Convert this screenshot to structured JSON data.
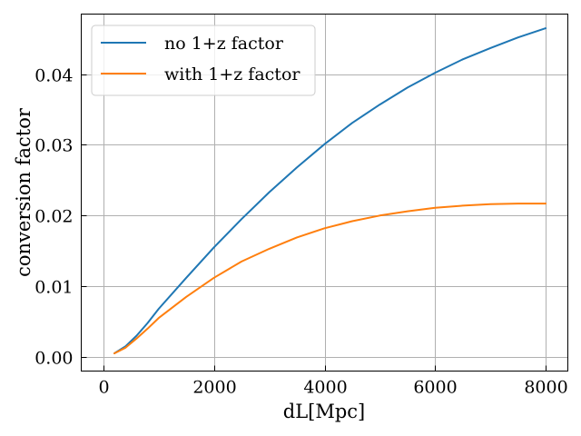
{
  "chart_data": {
    "type": "line",
    "title": "",
    "xlabel": "dL[Mpc]",
    "ylabel": "conversion factor",
    "xlim": [
      -400,
      8400
    ],
    "ylim": [
      -0.002,
      0.0485
    ],
    "xticks": [
      0,
      2000,
      4000,
      6000,
      8000
    ],
    "xtick_labels": [
      "0",
      "2000",
      "4000",
      "6000",
      "8000"
    ],
    "yticks": [
      0.0,
      0.01,
      0.02,
      0.03,
      0.04
    ],
    "ytick_labels": [
      "0.00",
      "0.01",
      "0.02",
      "0.03",
      "0.04"
    ],
    "grid": true,
    "legend_position": "top-left",
    "x": [
      200,
      400,
      600,
      800,
      1000,
      1500,
      2000,
      2500,
      3000,
      3500,
      4000,
      4500,
      5000,
      5500,
      6000,
      6500,
      7000,
      7500,
      8000
    ],
    "series": [
      {
        "name": "no 1+z factor",
        "color": "#1f77b4",
        "values": [
          0.0005,
          0.0015,
          0.003,
          0.0048,
          0.0068,
          0.0112,
          0.0155,
          0.0195,
          0.0233,
          0.0268,
          0.0301,
          0.0331,
          0.0357,
          0.0381,
          0.0402,
          0.0421,
          0.0437,
          0.0452,
          0.0465
        ]
      },
      {
        "name": "with 1+z factor",
        "color": "#ff7f0e",
        "values": [
          0.0005,
          0.0013,
          0.0026,
          0.004,
          0.0055,
          0.0085,
          0.0112,
          0.0135,
          0.0153,
          0.0169,
          0.0182,
          0.0192,
          0.02,
          0.0206,
          0.0211,
          0.0214,
          0.0216,
          0.0217,
          0.0217
        ]
      }
    ]
  }
}
